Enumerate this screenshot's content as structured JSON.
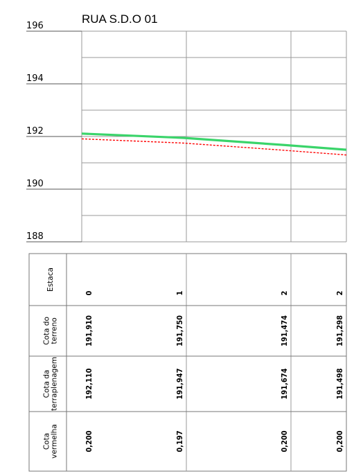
{
  "chart_data": {
    "type": "line",
    "title": "RUA S.D.O 01",
    "ylim": [
      188,
      196
    ],
    "y_ticks": [
      188,
      190,
      192,
      194,
      196
    ],
    "x_stations": [
      0,
      20,
      40,
      52
    ],
    "series": [
      {
        "role": "terreno",
        "color": "#ff0000",
        "style": "dashed",
        "values": [
          191.91,
          191.75,
          191.474,
          191.298
        ]
      },
      {
        "role": "terraplenagem",
        "color": "#3ad46a",
        "style": "solid",
        "values": [
          192.11,
          191.947,
          191.674,
          191.498
        ]
      }
    ],
    "table": {
      "row_labels": [
        {
          "key": "estaca",
          "lines": [
            "Estaca"
          ]
        },
        {
          "key": "terreno",
          "lines": [
            "Cota do",
            "terreno"
          ]
        },
        {
          "key": "terraplenagem",
          "lines": [
            "Cota da",
            "terraplenagem"
          ]
        },
        {
          "key": "vermelha",
          "lines": [
            "Cota",
            "vermelha"
          ]
        }
      ],
      "columns": [
        {
          "estaca": "0",
          "terreno": "191,910",
          "terraplenagem": "192,110",
          "vermelha": "0,200"
        },
        {
          "estaca": "1",
          "terreno": "191,750",
          "terraplenagem": "191,947",
          "vermelha": "0,197"
        },
        {
          "estaca": "2",
          "terreno": "191,474",
          "terraplenagem": "191,674",
          "vermelha": "0,200"
        },
        {
          "estaca": "2",
          "terreno": "191,298",
          "terraplenagem": "191,498",
          "vermelha": "0,200"
        }
      ]
    }
  }
}
